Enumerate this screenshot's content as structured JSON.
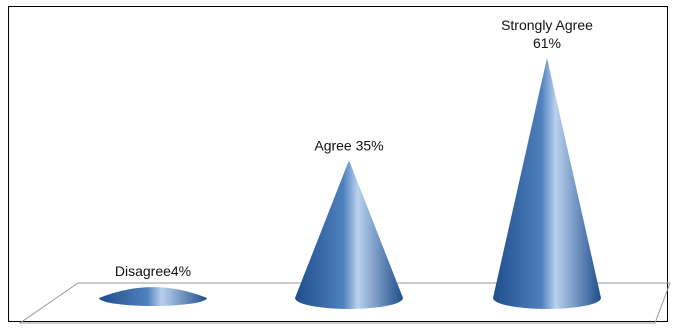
{
  "chart_data": {
    "type": "bar",
    "shape": "cone",
    "categories": [
      "Disagree",
      "Agree",
      "Strongly Agree"
    ],
    "values": [
      4,
      35,
      61
    ],
    "unit": "%",
    "data_labels": [
      {
        "lines": [
          "Disagree4%"
        ]
      },
      {
        "lines": [
          "Agree 35%"
        ]
      },
      {
        "lines": [
          "Strongly Agree",
          "61%"
        ]
      }
    ],
    "ylim": [
      0,
      61
    ],
    "grid": false,
    "legend": "none",
    "colors": {
      "cone_dark": "#1F4E8C",
      "cone_mid": "#4F81BD",
      "cone_light": "#B9D1EE",
      "floor_stroke": "#9A9A9A",
      "frame": "#000000"
    }
  }
}
